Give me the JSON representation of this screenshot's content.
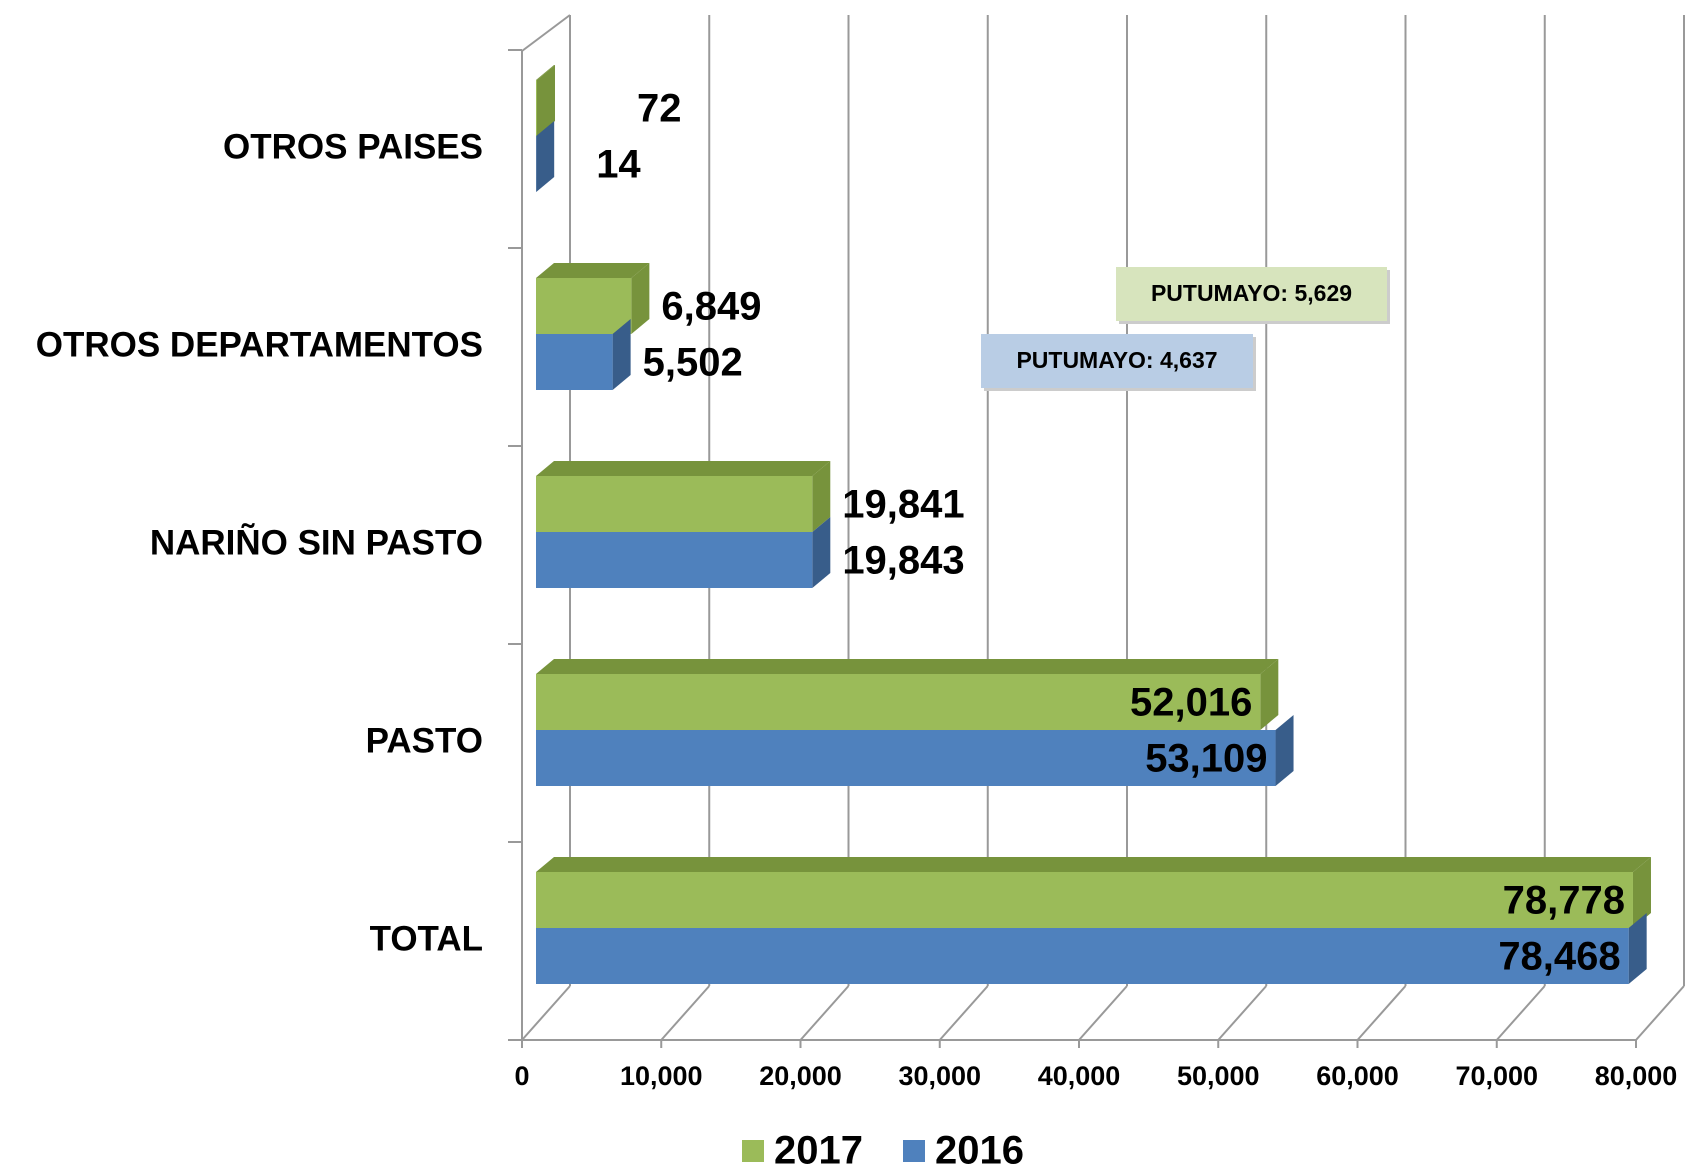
{
  "chart_data": {
    "type": "bar3d_horizontal",
    "categories": [
      "OTROS PAISES",
      "OTROS DEPARTAMENTOS",
      "NARIÑO SIN PASTO",
      "PASTO",
      "TOTAL"
    ],
    "series": [
      {
        "name": "2017",
        "color": "#9bbb59",
        "side_color": "#77933c",
        "values": [
          72,
          6849,
          19841,
          52016,
          78778
        ],
        "value_labels": [
          "72",
          "6,849",
          "19,841",
          "52,016",
          "78,778"
        ]
      },
      {
        "name": "2016",
        "color": "#4f81bd",
        "side_color": "#385d8a",
        "values": [
          14,
          5502,
          19843,
          53109,
          78468
        ],
        "value_labels": [
          "14",
          "5,502",
          "19,843",
          "53,109",
          "78,468"
        ]
      }
    ],
    "xlim": [
      0,
      80000
    ],
    "xticks": [
      0,
      {
        "value": 10000,
        "label": "10,000"
      },
      {
        "value": 20000,
        "label": "20,000"
      },
      {
        "value": 30000,
        "label": "30,000"
      },
      {
        "value": 40000,
        "label": "40,000"
      },
      {
        "value": 50000,
        "label": "50,000"
      },
      {
        "value": 60000,
        "label": "60,000"
      },
      {
        "value": 70000,
        "label": "70,000"
      },
      {
        "value": 80000,
        "label": "80,000"
      }
    ],
    "grid": true,
    "legend": "bottom",
    "annotations": [
      {
        "text": "PUTUMAYO: 5,629",
        "color": "#d7e4bd"
      },
      {
        "text": "PUTUMAYO: 4,637",
        "color": "#b9cde5"
      }
    ]
  }
}
